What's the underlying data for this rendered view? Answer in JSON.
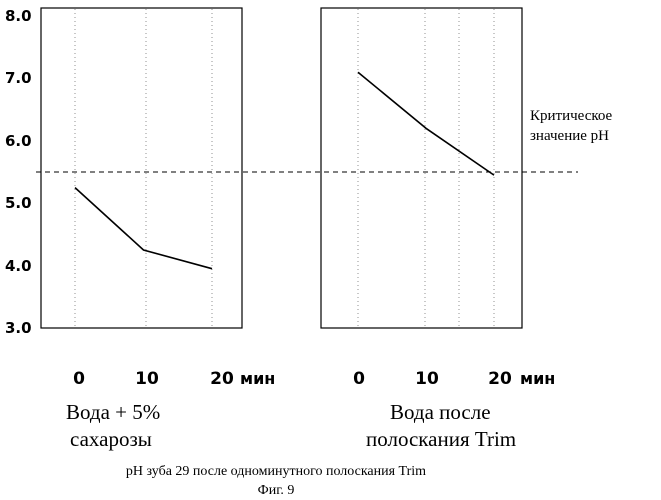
{
  "chart_data": {
    "type": "line",
    "y_axis": {
      "ylim": [
        3.0,
        8.0
      ],
      "tick_labels": [
        "8.0",
        "7.0",
        "6.0",
        "5.0",
        "4.0",
        "3.0"
      ],
      "tick_values": [
        8.0,
        7.0,
        6.0,
        5.0,
        4.0,
        3.0
      ]
    },
    "critical_value": {
      "value": 5.5,
      "label_lines": [
        "Критическое",
        "значение pH"
      ],
      "line_style": "dashed"
    },
    "panels": [
      {
        "tick_labels": [
          "0",
          "10",
          "20"
        ],
        "unit": "мин",
        "x": [
          0,
          10,
          20
        ],
        "values": [
          5.25,
          4.25,
          3.95
        ],
        "label_lines": [
          "Вода + 5%",
          "сахарозы"
        ]
      },
      {
        "tick_labels": [
          "0",
          "10",
          "20"
        ],
        "unit": "мин",
        "x": [
          0,
          10,
          20
        ],
        "values": [
          7.1,
          6.2,
          5.45
        ],
        "label_lines": [
          "Вода после",
          "полоскания Trim"
        ]
      }
    ],
    "caption": "pH зуба 29 после  одноминутного  полоскания Trim",
    "figure_label": "Фиг. 9",
    "grid": "vertical dotted",
    "colors": {
      "line": "#000000",
      "background": "#ffffff"
    }
  }
}
